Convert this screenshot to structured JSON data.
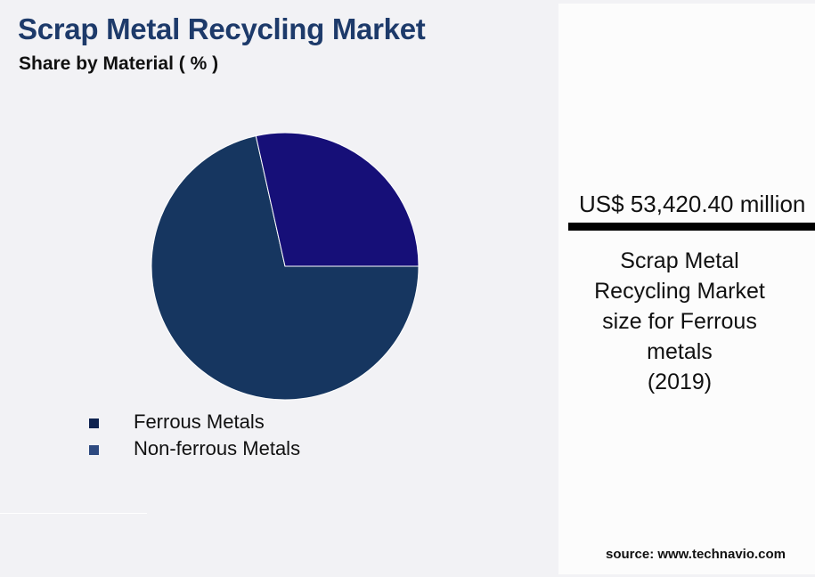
{
  "chart_data": {
    "type": "pie",
    "title": "Scrap Metal Recycling Market",
    "subtitle": "Share by Material ( % )",
    "categories": [
      "Ferrous Metals",
      "Non-ferrous Metals"
    ],
    "values": [
      71.5,
      28.5
    ],
    "slice_colors": [
      "#163660",
      "#160f78"
    ],
    "legend_colors": [
      "#0f2350",
      "#2e4a80"
    ],
    "legend_placement": "bottom-left"
  },
  "callout": {
    "value": "US$ 53,420.40 million",
    "description_lines": [
      "Scrap Metal",
      "Recycling Market",
      "size for Ferrous",
      "metals",
      "(2019)"
    ]
  },
  "source": "source: www.technavio.com"
}
